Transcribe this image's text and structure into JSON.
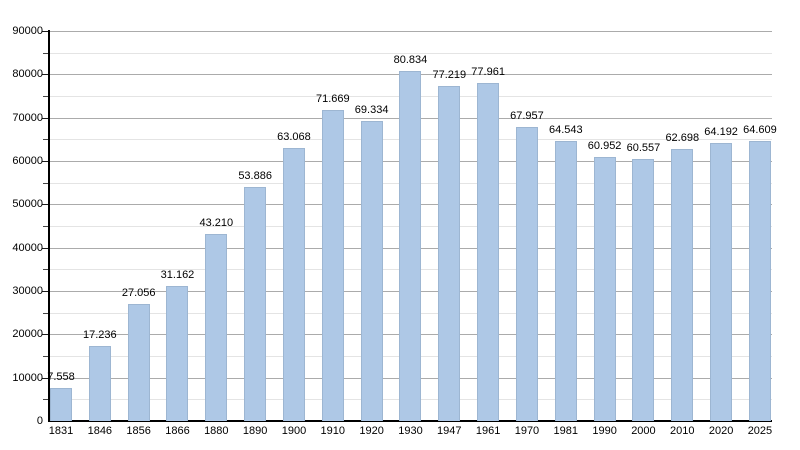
{
  "chart_data": {
    "type": "bar",
    "title": "",
    "xlabel": "",
    "ylabel": "",
    "categories": [
      "1831",
      "1846",
      "1856",
      "1866",
      "1880",
      "1890",
      "1900",
      "1910",
      "1920",
      "1930",
      "1947",
      "1961",
      "1970",
      "1981",
      "1990",
      "2000",
      "2010",
      "2020",
      "2025"
    ],
    "values": [
      7558,
      17236,
      27056,
      31162,
      43210,
      53886,
      63068,
      71669,
      69334,
      80834,
      77219,
      77961,
      67957,
      64543,
      60952,
      60557,
      62698,
      64192,
      64609
    ],
    "value_labels": [
      "7.558",
      "17.236",
      "27.056",
      "31.162",
      "43.210",
      "53.886",
      "63.068",
      "71.669",
      "69.334",
      "80.834",
      "77.219",
      "77.961",
      "67.957",
      "64.543",
      "60.952",
      "60.557",
      "62.698",
      "64.192",
      "64.609"
    ],
    "ylim": [
      0,
      90000
    ],
    "y_major_step": 10000,
    "y_minor_step": 5000,
    "ytick_labels": [
      "0",
      "10000",
      "20000",
      "30000",
      "40000",
      "50000",
      "60000",
      "70000",
      "80000",
      "90000"
    ],
    "grid": "horizontal, major and minor lines",
    "legend_position": "none",
    "colors": {
      "bar_fill": "#aec8e6",
      "bar_border": "#9db6d2",
      "grid_major": "#ababab",
      "grid_minor": "#e4e4e4",
      "axis": "#000000",
      "text": "#000000",
      "background": "#ffffff"
    }
  }
}
